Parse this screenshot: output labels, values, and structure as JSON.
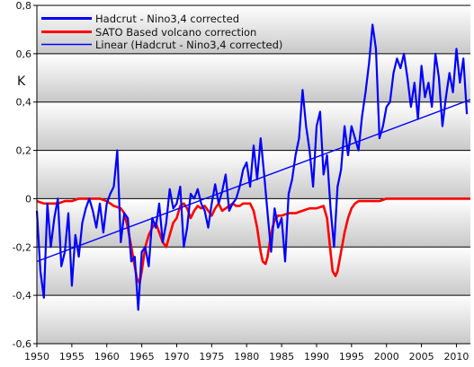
{
  "chart_data": {
    "type": "line",
    "title": "",
    "xlabel": "",
    "ylabel": "K",
    "xlim": [
      1950,
      2012
    ],
    "ylim": [
      -0.6,
      0.8
    ],
    "x_ticks": [
      1950,
      1955,
      1960,
      1965,
      1970,
      1975,
      1980,
      1985,
      1990,
      1995,
      2000,
      2005,
      2010
    ],
    "y_ticks": [
      -0.6,
      -0.4,
      -0.2,
      0,
      0.2,
      0.4,
      0.6,
      0.8
    ],
    "x_tick_labels": [
      "1950",
      "1955",
      "1960",
      "1965",
      "1970",
      "1975",
      "1980",
      "1985",
      "1990",
      "1995",
      "2000",
      "2005",
      "2010"
    ],
    "y_tick_labels": [
      "-0,6",
      "-0,4",
      "-0,2",
      "0",
      "0,2",
      "0,4",
      "0,6",
      "0,8"
    ],
    "grid": "horizontal",
    "background": "gradient gray bands",
    "legend_position": "top-left",
    "series": [
      {
        "name": "Hadcrut - Nino3,4 corrected",
        "color": "#0000ff",
        "style": "thick",
        "x": [
          1950,
          1950.5,
          1951,
          1951.5,
          1952,
          1952.5,
          1953,
          1953.5,
          1954,
          1954.5,
          1955,
          1955.5,
          1956,
          1956.5,
          1957,
          1957.5,
          1958,
          1958.5,
          1959,
          1959.5,
          1960,
          1960.5,
          1961,
          1961.5,
          1962,
          1962.5,
          1963,
          1963.5,
          1964,
          1964.5,
          1965,
          1965.5,
          1966,
          1966.5,
          1967,
          1967.5,
          1968,
          1968.5,
          1969,
          1969.5,
          1970,
          1970.5,
          1971,
          1971.5,
          1972,
          1972.5,
          1973,
          1973.5,
          1974,
          1974.5,
          1975,
          1975.5,
          1976,
          1976.5,
          1977,
          1977.5,
          1978,
          1978.5,
          1979,
          1979.5,
          1980,
          1980.5,
          1981,
          1981.5,
          1982,
          1982.5,
          1983,
          1983.5,
          1984,
          1984.5,
          1985,
          1985.5,
          1986,
          1986.5,
          1987,
          1987.5,
          1988,
          1988.5,
          1989,
          1989.5,
          1990,
          1990.5,
          1991,
          1991.5,
          1992,
          1992.5,
          1993,
          1993.5,
          1994,
          1994.5,
          1995,
          1995.5,
          1996,
          1996.5,
          1997,
          1997.5,
          1998,
          1998.5,
          1999,
          1999.5,
          2000,
          2000.5,
          2001,
          2001.5,
          2002,
          2002.5,
          2003,
          2003.5,
          2004,
          2004.5,
          2005,
          2005.5,
          2006,
          2006.5,
          2007,
          2007.5,
          2008,
          2008.5,
          2009,
          2009.5,
          2010,
          2010.5,
          2011,
          2011.5
        ],
        "values": [
          -0.05,
          -0.3,
          -0.41,
          -0.02,
          -0.2,
          -0.08,
          0.0,
          -0.28,
          -0.22,
          -0.06,
          -0.36,
          -0.15,
          -0.24,
          -0.1,
          -0.04,
          0.0,
          -0.05,
          -0.12,
          -0.02,
          -0.14,
          -0.02,
          0.02,
          0.05,
          0.2,
          -0.18,
          -0.06,
          -0.08,
          -0.26,
          -0.24,
          -0.46,
          -0.22,
          -0.2,
          -0.28,
          -0.08,
          -0.12,
          -0.02,
          -0.18,
          -0.1,
          0.04,
          -0.04,
          -0.02,
          0.05,
          -0.2,
          -0.12,
          0.02,
          0.0,
          0.04,
          -0.02,
          -0.05,
          -0.12,
          -0.02,
          0.06,
          -0.02,
          0.03,
          0.1,
          -0.05,
          -0.02,
          0.0,
          0.05,
          0.12,
          0.15,
          0.05,
          0.22,
          0.08,
          0.25,
          0.1,
          -0.06,
          -0.22,
          -0.04,
          -0.12,
          -0.08,
          -0.26,
          0.02,
          0.08,
          0.18,
          0.25,
          0.45,
          0.3,
          0.2,
          0.05,
          0.3,
          0.36,
          0.1,
          0.18,
          -0.04,
          -0.2,
          0.05,
          0.12,
          0.3,
          0.18,
          0.3,
          0.25,
          0.2,
          0.34,
          0.44,
          0.56,
          0.72,
          0.62,
          0.25,
          0.3,
          0.38,
          0.4,
          0.52,
          0.58,
          0.54,
          0.6,
          0.5,
          0.38,
          0.48,
          0.33,
          0.55,
          0.42,
          0.48,
          0.38,
          0.6,
          0.5,
          0.3,
          0.42,
          0.52,
          0.44,
          0.62,
          0.48,
          0.58,
          0.35
        ]
      },
      {
        "name": "SATO Based volcano correction",
        "color": "#ff0000",
        "style": "thick",
        "x": [
          1950,
          1951,
          1952,
          1953,
          1954,
          1955,
          1956,
          1957,
          1958,
          1959,
          1960,
          1961,
          1962,
          1962.5,
          1963,
          1963.5,
          1964,
          1964.3,
          1964.7,
          1965,
          1965.5,
          1966,
          1966.5,
          1967,
          1967.5,
          1968,
          1968.5,
          1969,
          1969.5,
          1970,
          1970.5,
          1971,
          1971.5,
          1972,
          1972.5,
          1973,
          1973.5,
          1974,
          1974.5,
          1975,
          1975.5,
          1976,
          1976.5,
          1977,
          1977.5,
          1978,
          1978.5,
          1979,
          1979.5,
          1980,
          1980.5,
          1981,
          1981.5,
          1982,
          1982.3,
          1982.7,
          1983,
          1983.3,
          1983.7,
          1984,
          1984.5,
          1985,
          1986,
          1987,
          1988,
          1989,
          1990,
          1991,
          1991.5,
          1992,
          1992.3,
          1992.7,
          1993,
          1993.5,
          1994,
          1994.5,
          1995,
          1995.5,
          1996,
          1997,
          1998,
          1999,
          2000,
          2002,
          2004,
          2006,
          2008,
          2010,
          2012
        ],
        "values": [
          -0.01,
          -0.02,
          -0.02,
          -0.02,
          -0.01,
          -0.01,
          0.0,
          0.0,
          0.0,
          0.0,
          -0.01,
          -0.03,
          -0.04,
          -0.06,
          -0.12,
          -0.2,
          -0.28,
          -0.33,
          -0.35,
          -0.3,
          -0.2,
          -0.15,
          -0.12,
          -0.1,
          -0.14,
          -0.18,
          -0.2,
          -0.15,
          -0.1,
          -0.08,
          -0.03,
          -0.02,
          -0.04,
          -0.08,
          -0.05,
          -0.03,
          -0.04,
          -0.03,
          -0.05,
          -0.07,
          -0.04,
          -0.02,
          -0.05,
          -0.04,
          -0.03,
          -0.02,
          -0.03,
          -0.03,
          -0.02,
          -0.02,
          -0.02,
          -0.05,
          -0.12,
          -0.22,
          -0.26,
          -0.27,
          -0.24,
          -0.18,
          -0.12,
          -0.09,
          -0.07,
          -0.07,
          -0.06,
          -0.06,
          -0.05,
          -0.04,
          -0.04,
          -0.03,
          -0.08,
          -0.22,
          -0.3,
          -0.32,
          -0.3,
          -0.22,
          -0.14,
          -0.08,
          -0.04,
          -0.02,
          -0.01,
          -0.01,
          -0.01,
          -0.01,
          0.0,
          0.0,
          0.0,
          0.0,
          0.0,
          0.0,
          0.0
        ]
      },
      {
        "name": "Linear (Hadcrut - Nino3,4 corrected)",
        "color": "#0000ff",
        "style": "thin",
        "x": [
          1950,
          2012
        ],
        "values": [
          -0.26,
          0.41
        ]
      }
    ]
  }
}
